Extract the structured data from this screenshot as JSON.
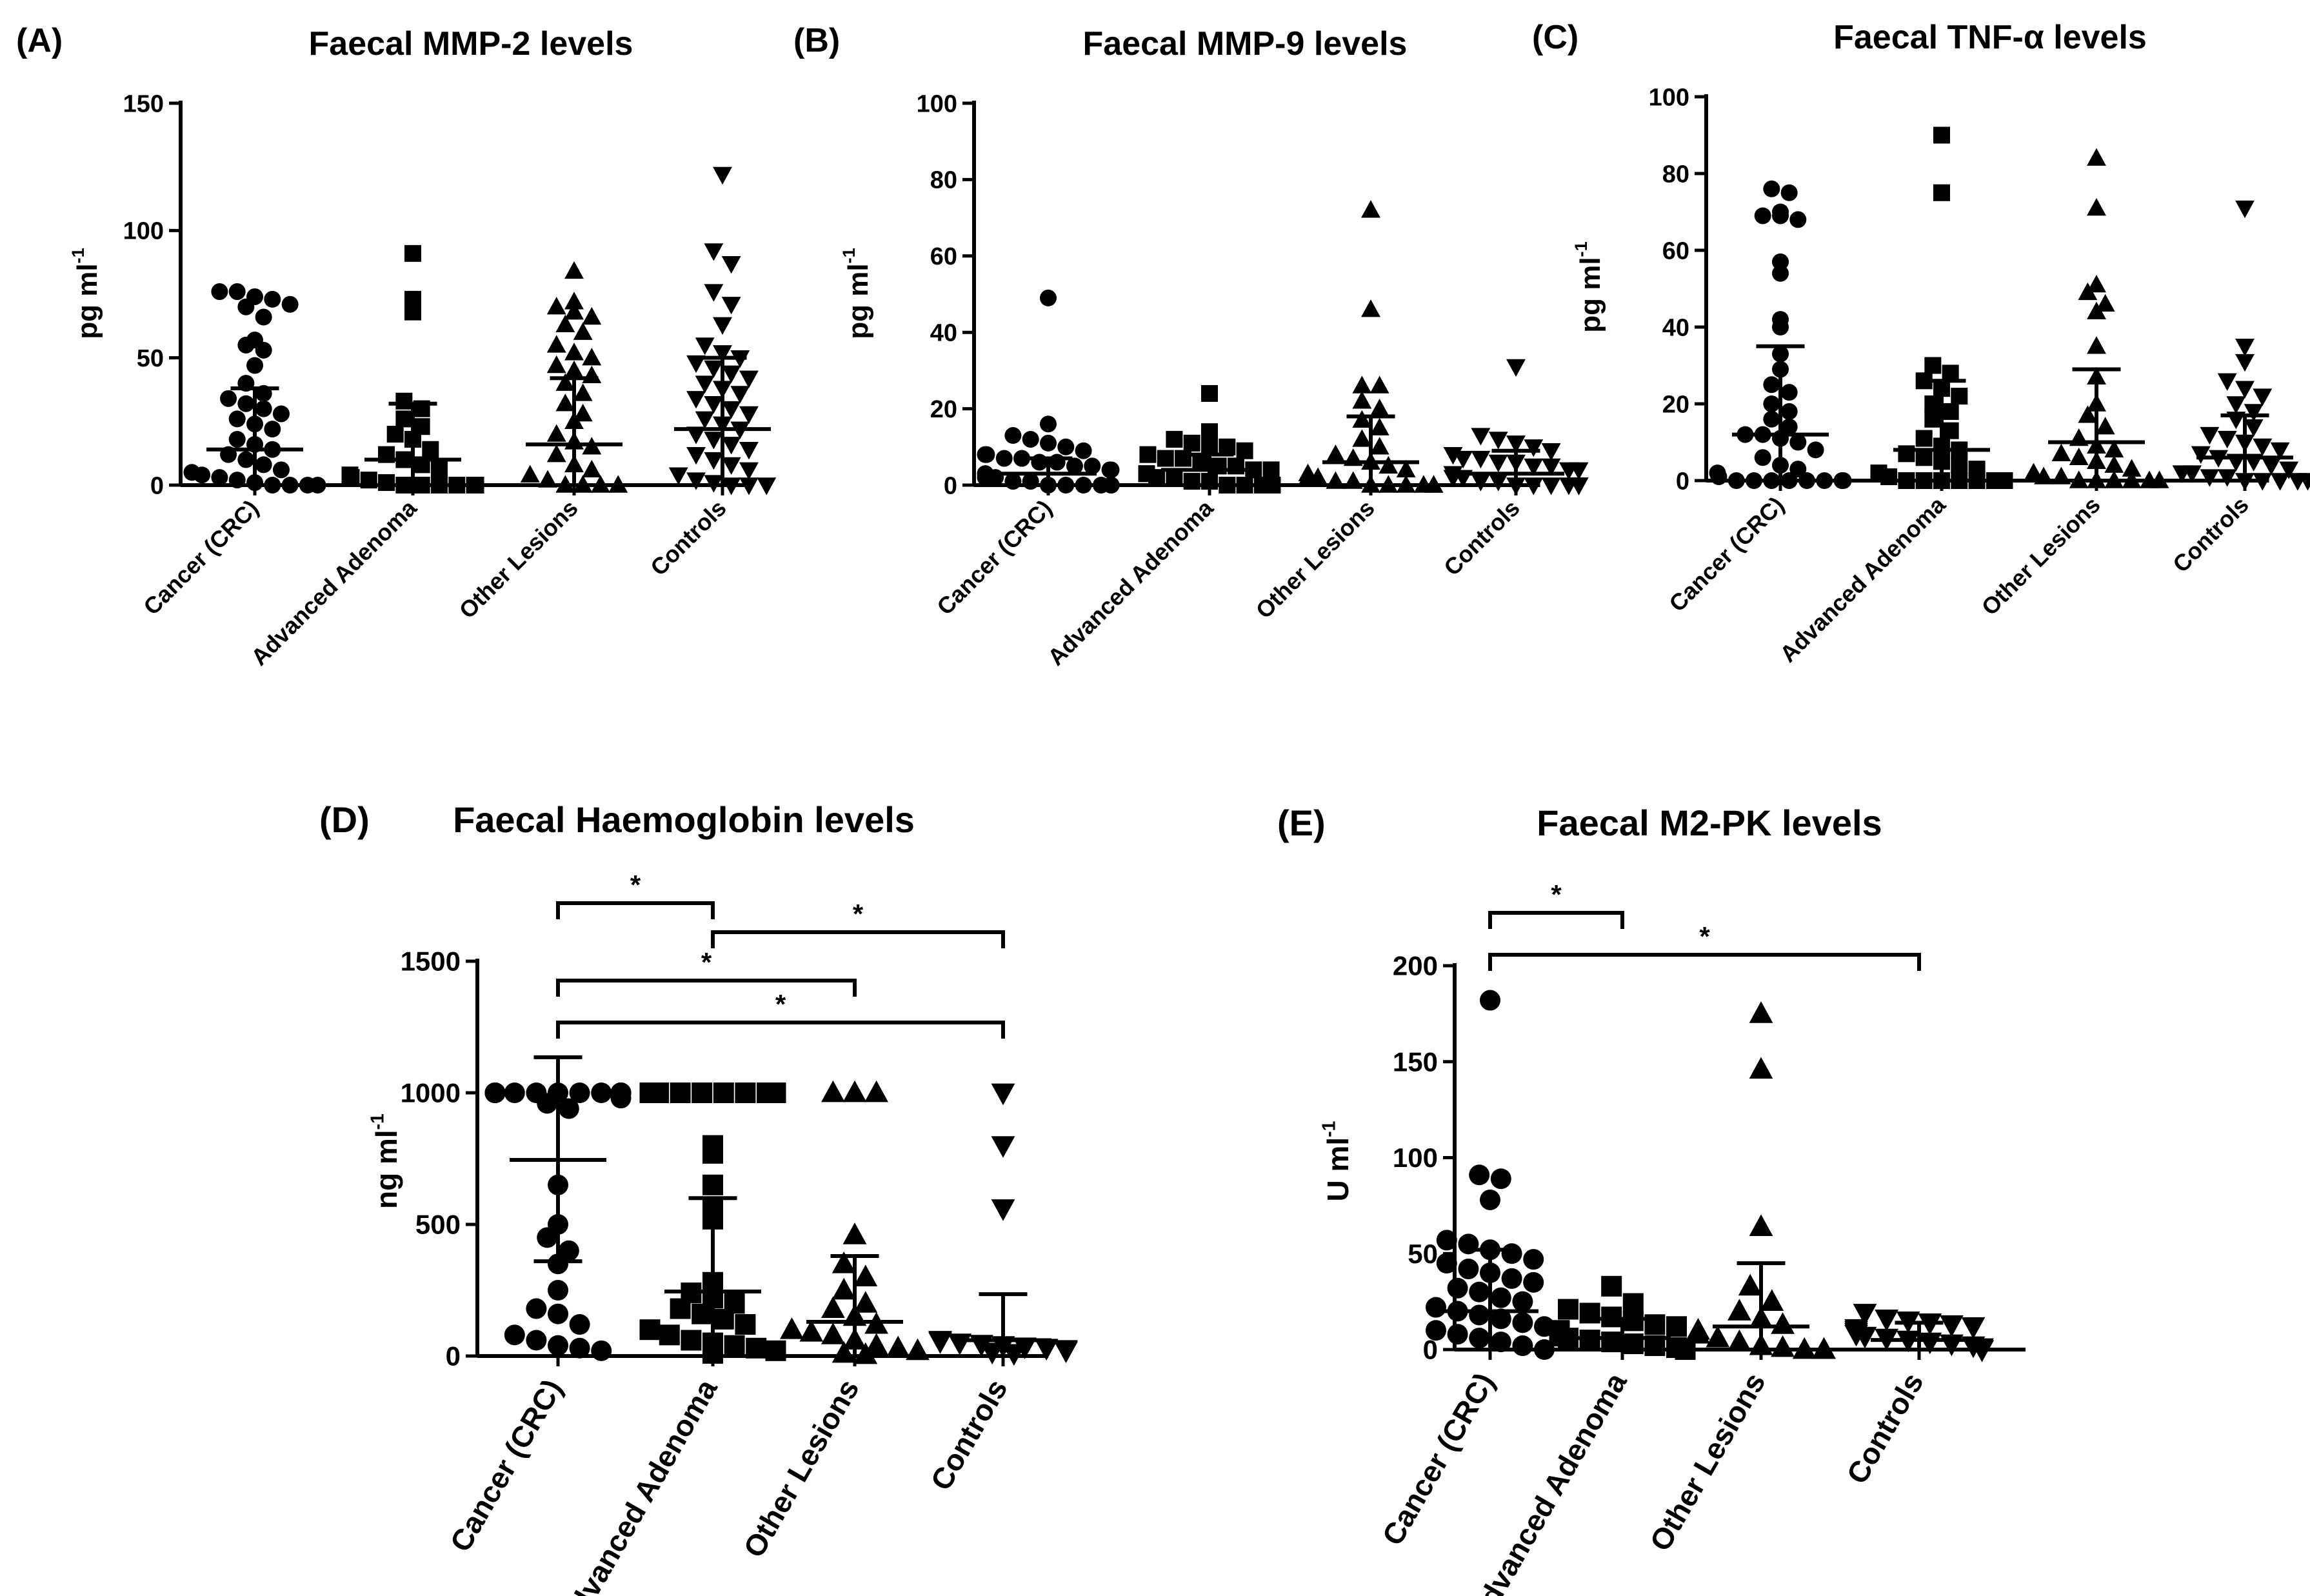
{
  "chart_data": [
    {
      "type": "scatter",
      "panel_label": "(A)",
      "title": "Faecal MMP-2 levels",
      "ylabel_main": "pg ml",
      "ylabel_sup": "-1",
      "ylim": [
        0,
        150
      ],
      "yticks": [
        "0",
        "50",
        "100",
        "150"
      ],
      "categories": [
        "Cancer (CRC)",
        "Advanced Adenoma",
        "Other Lesions",
        "Controls"
      ],
      "markers": [
        "circle",
        "square",
        "triangle-up",
        "triangle-down"
      ],
      "series": [
        {
          "values": [
            76,
            76,
            74,
            73,
            71,
            70,
            66,
            57,
            55,
            53,
            47,
            40,
            36,
            34,
            32,
            30,
            28,
            26,
            24,
            22,
            18,
            16,
            14,
            12,
            10,
            8,
            6,
            5,
            4,
            3,
            2,
            1,
            0,
            0,
            0,
            0
          ],
          "median": 14,
          "upper": 38,
          "lower": 0
        },
        {
          "values": [
            91,
            73,
            68,
            33,
            30,
            26,
            23,
            20,
            18,
            14,
            12,
            10,
            8,
            6,
            4,
            3,
            2,
            1,
            0,
            0,
            0,
            0,
            0,
            0
          ],
          "median": 10,
          "upper": 32,
          "lower": 0
        },
        {
          "values": [
            84,
            72,
            70,
            68,
            66,
            63,
            60,
            55,
            52,
            50,
            47,
            45,
            43,
            40,
            36,
            32,
            28,
            25,
            20,
            17,
            15,
            12,
            8,
            6,
            4,
            2,
            0,
            0,
            0,
            0
          ],
          "median": 16,
          "upper": 42,
          "lower": 0
        },
        {
          "values": [
            122,
            92,
            87,
            76,
            71,
            63,
            55,
            52,
            50,
            48,
            46,
            44,
            42,
            40,
            38,
            36,
            34,
            32,
            30,
            28,
            26,
            24,
            22,
            20,
            18,
            16,
            14,
            12,
            10,
            8,
            6,
            4,
            2,
            1,
            0,
            0,
            0
          ],
          "median": 22,
          "upper": 50,
          "lower": 0
        }
      ]
    },
    {
      "type": "scatter",
      "panel_label": "(B)",
      "title": "Faecal MMP-9 levels",
      "ylabel_main": "pg ml",
      "ylabel_sup": "-1",
      "ylim": [
        0,
        100
      ],
      "yticks": [
        "0",
        "20",
        "40",
        "60",
        "80",
        "100"
      ],
      "categories": [
        "Cancer (CRC)",
        "Advanced Adenoma",
        "Other Lesions",
        "Controls"
      ],
      "markers": [
        "circle",
        "square",
        "triangle-up",
        "triangle-down"
      ],
      "series": [
        {
          "values": [
            49,
            16,
            13,
            12,
            11,
            10,
            9,
            8,
            8,
            7,
            7,
            6,
            6,
            5,
            5,
            4,
            4,
            3,
            3,
            2,
            2,
            1,
            1,
            0,
            0,
            0,
            0,
            0,
            0,
            0
          ],
          "median": 3,
          "upper": 7,
          "lower": 0
        },
        {
          "values": [
            24,
            14,
            12,
            11,
            10,
            10,
            9,
            8,
            7,
            7,
            6,
            5,
            5,
            4,
            4,
            3,
            3,
            2,
            2,
            1,
            1,
            0,
            0,
            0,
            0,
            0
          ],
          "median": 4,
          "upper": 8,
          "lower": 0
        },
        {
          "values": [
            72,
            46,
            26,
            26,
            22,
            20,
            17,
            15,
            12,
            10,
            8,
            7,
            6,
            5,
            4,
            3,
            2,
            2,
            1,
            1,
            0,
            0,
            0,
            0,
            0,
            0
          ],
          "median": 6,
          "upper": 18,
          "lower": 0
        },
        {
          "values": [
            31,
            13,
            12,
            11,
            10,
            9,
            8,
            7,
            7,
            6,
            6,
            5,
            5,
            4,
            4,
            3,
            3,
            2,
            2,
            1,
            1,
            0,
            0,
            0,
            0,
            0,
            0,
            0
          ],
          "median": 3,
          "upper": 9,
          "lower": 0
        }
      ]
    },
    {
      "type": "scatter",
      "panel_label": "(C)",
      "title": "Faecal TNF-α levels",
      "ylabel_main": "pg ml",
      "ylabel_sup": "-1",
      "ylim": [
        0,
        100
      ],
      "yticks": [
        "0",
        "20",
        "40",
        "60",
        "80",
        "100"
      ],
      "categories": [
        "Cancer (CRC)",
        "Advanced Adenoma",
        "Other Lesions",
        "Controls"
      ],
      "markers": [
        "circle",
        "square",
        "triangle-up",
        "triangle-down"
      ],
      "series": [
        {
          "values": [
            76,
            75,
            70,
            69,
            69,
            68,
            57,
            54,
            42,
            40,
            33,
            29,
            25,
            23,
            20,
            18,
            16,
            14,
            12,
            12,
            11,
            10,
            8,
            6,
            4,
            3,
            2,
            1,
            0,
            0,
            0,
            0,
            0,
            0,
            0,
            0
          ],
          "median": 12,
          "upper": 35,
          "lower": 0
        },
        {
          "values": [
            90,
            75,
            30,
            28,
            26,
            24,
            22,
            20,
            18,
            16,
            13,
            11,
            9,
            8,
            7,
            6,
            5,
            4,
            3,
            2,
            1,
            0,
            0,
            0,
            0,
            0,
            0,
            0
          ],
          "median": 8,
          "upper": 26,
          "lower": 0
        },
        {
          "values": [
            84,
            71,
            51,
            49,
            46,
            44,
            35,
            27,
            20,
            17,
            14,
            11,
            9,
            8,
            7,
            6,
            5,
            4,
            3,
            2,
            1,
            1,
            0,
            0,
            0,
            0,
            0,
            0
          ],
          "median": 10,
          "upper": 29,
          "lower": 0
        },
        {
          "values": [
            71,
            35,
            31,
            26,
            24,
            22,
            20,
            18,
            16,
            14,
            12,
            11,
            10,
            9,
            8,
            7,
            6,
            5,
            5,
            4,
            3,
            2,
            2,
            1,
            1,
            0,
            0,
            0,
            0,
            0
          ],
          "median": 6,
          "upper": 17,
          "lower": 0
        }
      ]
    },
    {
      "type": "scatter",
      "panel_label": "(D)",
      "title": "Faecal Haemoglobin levels",
      "ylabel_main": "ng ml",
      "ylabel_sup": "-1",
      "ylim": [
        0,
        1500
      ],
      "yticks": [
        "0",
        "500",
        "1000",
        "1500"
      ],
      "categories": [
        "Cancer (CRC)",
        "Advanced Adenoma",
        "Other Lesions",
        "Controls"
      ],
      "markers": [
        "circle",
        "square",
        "triangle-up",
        "triangle-down"
      ],
      "series": [
        {
          "values": [
            1000,
            1000,
            1000,
            1000,
            1000,
            1000,
            1000,
            1000,
            1000,
            1000,
            1000,
            1000,
            1000,
            1000,
            1000,
            1000,
            1000,
            1000,
            980,
            960,
            940,
            650,
            500,
            450,
            400,
            350,
            250,
            180,
            160,
            120,
            80,
            60,
            40,
            30,
            20
          ],
          "median": 745,
          "upper": 1135,
          "lower": 360
        },
        {
          "values": [
            1000,
            1000,
            1000,
            1000,
            1000,
            1000,
            1000,
            1000,
            1000,
            1000,
            1000,
            1000,
            1000,
            1000,
            800,
            770,
            650,
            560,
            520,
            280,
            240,
            220,
            200,
            180,
            160,
            140,
            120,
            100,
            80,
            60,
            50,
            40,
            30,
            20,
            10
          ],
          "median": 245,
          "upper": 600,
          "lower": 0
        },
        {
          "values": [
            1000,
            1000,
            1000,
            460,
            350,
            300,
            250,
            200,
            180,
            150,
            120,
            100,
            90,
            80,
            60,
            40,
            30,
            20,
            10,
            5
          ],
          "median": 130,
          "upper": 380,
          "lower": 0
        },
        {
          "values": [
            1000,
            800,
            560,
            60,
            55,
            50,
            45,
            40,
            35,
            30,
            25,
            20,
            15,
            10
          ],
          "median": 60,
          "upper": 235,
          "lower": 0
        }
      ]
    },
    {
      "type": "scatter",
      "panel_label": "(E)",
      "title": "Faecal M2-PK levels",
      "ylabel_main": "U ml",
      "ylabel_sup": "-1",
      "ylim": [
        0,
        200
      ],
      "yticks": [
        "0",
        "50",
        "100",
        "150",
        "200"
      ],
      "categories": [
        "Cancer (CRC)",
        "Advanced Adenoma",
        "Other Lesions",
        "Controls"
      ],
      "markers": [
        "circle",
        "square",
        "triangle-up",
        "triangle-down"
      ],
      "series": [
        {
          "values": [
            182,
            91,
            89,
            78,
            57,
            55,
            52,
            50,
            47,
            45,
            42,
            40,
            37,
            35,
            32,
            30,
            27,
            25,
            22,
            20,
            18,
            16,
            14,
            12,
            10,
            8,
            6,
            4,
            2,
            0
          ],
          "median": 20,
          "upper": 52,
          "lower": 0
        },
        {
          "values": [
            33,
            24,
            21,
            19,
            17,
            15,
            13,
            12,
            10,
            9,
            8,
            7,
            6,
            5,
            4,
            3,
            2,
            1,
            0,
            0,
            0,
            0
          ],
          "median": 6,
          "upper": 16,
          "lower": 0
        },
        {
          "values": [
            175,
            146,
            64,
            33,
            25,
            20,
            16,
            13,
            10,
            8,
            6,
            4,
            2,
            1,
            0,
            0,
            0
          ],
          "median": 12,
          "upper": 45,
          "lower": 0
        },
        {
          "values": [
            19,
            16,
            15,
            14,
            13,
            12,
            11,
            10,
            9,
            8,
            7,
            6,
            5,
            4,
            3,
            2,
            1,
            0,
            0,
            0
          ],
          "median": 5,
          "upper": 14,
          "lower": 0
        }
      ],
      "significance": [
        {
          "from": 0,
          "to": 1,
          "label": "*"
        },
        {
          "from": 0,
          "to": 3,
          "label": "*"
        }
      ]
    }
  ],
  "significance_D": [
    {
      "from": 0,
      "to": 1,
      "label": "*"
    },
    {
      "from": 1,
      "to": 3,
      "label": "*"
    },
    {
      "from": 0,
      "to": 2,
      "label": "*"
    },
    {
      "from": 0,
      "to": 3,
      "label": "*"
    }
  ]
}
